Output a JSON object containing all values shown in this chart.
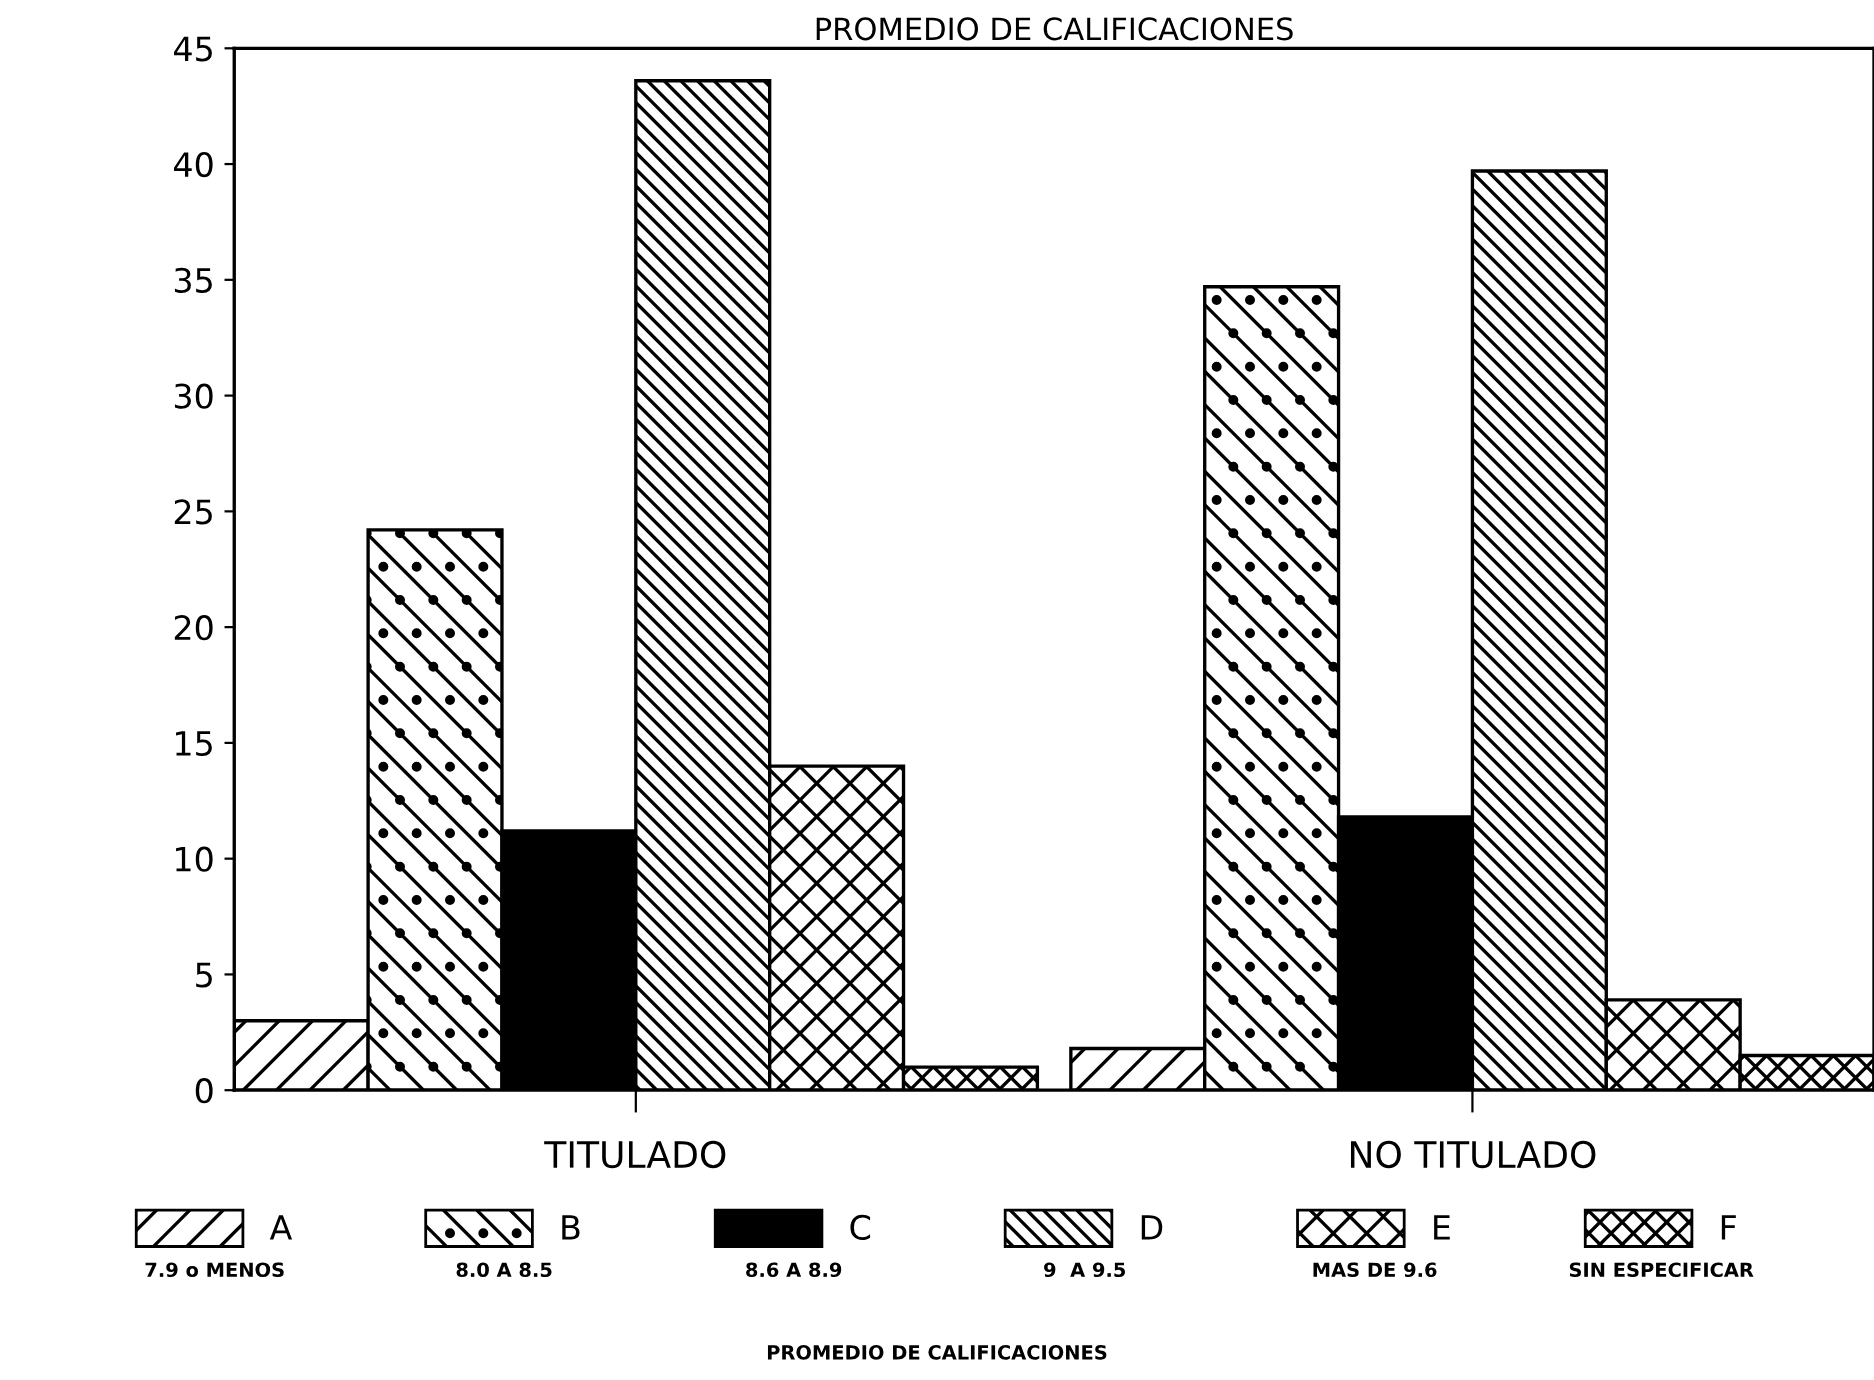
{
  "chart_data": {
    "type": "bar",
    "title": "PROMEDIO DE CALIFICACIONES",
    "categories": [
      "TITULADO",
      "NO TITULADO"
    ],
    "series": [
      {
        "name": "A",
        "color": "#000000",
        "values": [
          3.0,
          1.8
        ]
      },
      {
        "name": "B",
        "color": "#000000",
        "values": [
          24.2,
          34.7
        ]
      },
      {
        "name": "C",
        "color": "#000000",
        "values": [
          11.2,
          11.8
        ]
      },
      {
        "name": "D",
        "color": "#000000",
        "values": [
          43.6,
          39.7
        ]
      },
      {
        "name": "E",
        "color": "#000000",
        "values": [
          14.0,
          3.9
        ]
      },
      {
        "name": "F",
        "color": "#000000",
        "values": [
          1.0,
          1.5
        ]
      }
    ],
    "annotations": [
      "7.9 o MENOS",
      "8.0 A 8.5",
      "8.6 A 8.9",
      "9  A 9.5",
      "MAS DE 9.6",
      "SIN ESPECIFICAR",
      "PROMEDIO DE CALIFICACIONES"
    ],
    "ylim": [
      0,
      45
    ],
    "yticks": [
      0,
      5,
      10,
      15,
      20,
      25,
      30,
      35,
      40,
      45
    ],
    "grid": false,
    "legend": "bottom"
  }
}
